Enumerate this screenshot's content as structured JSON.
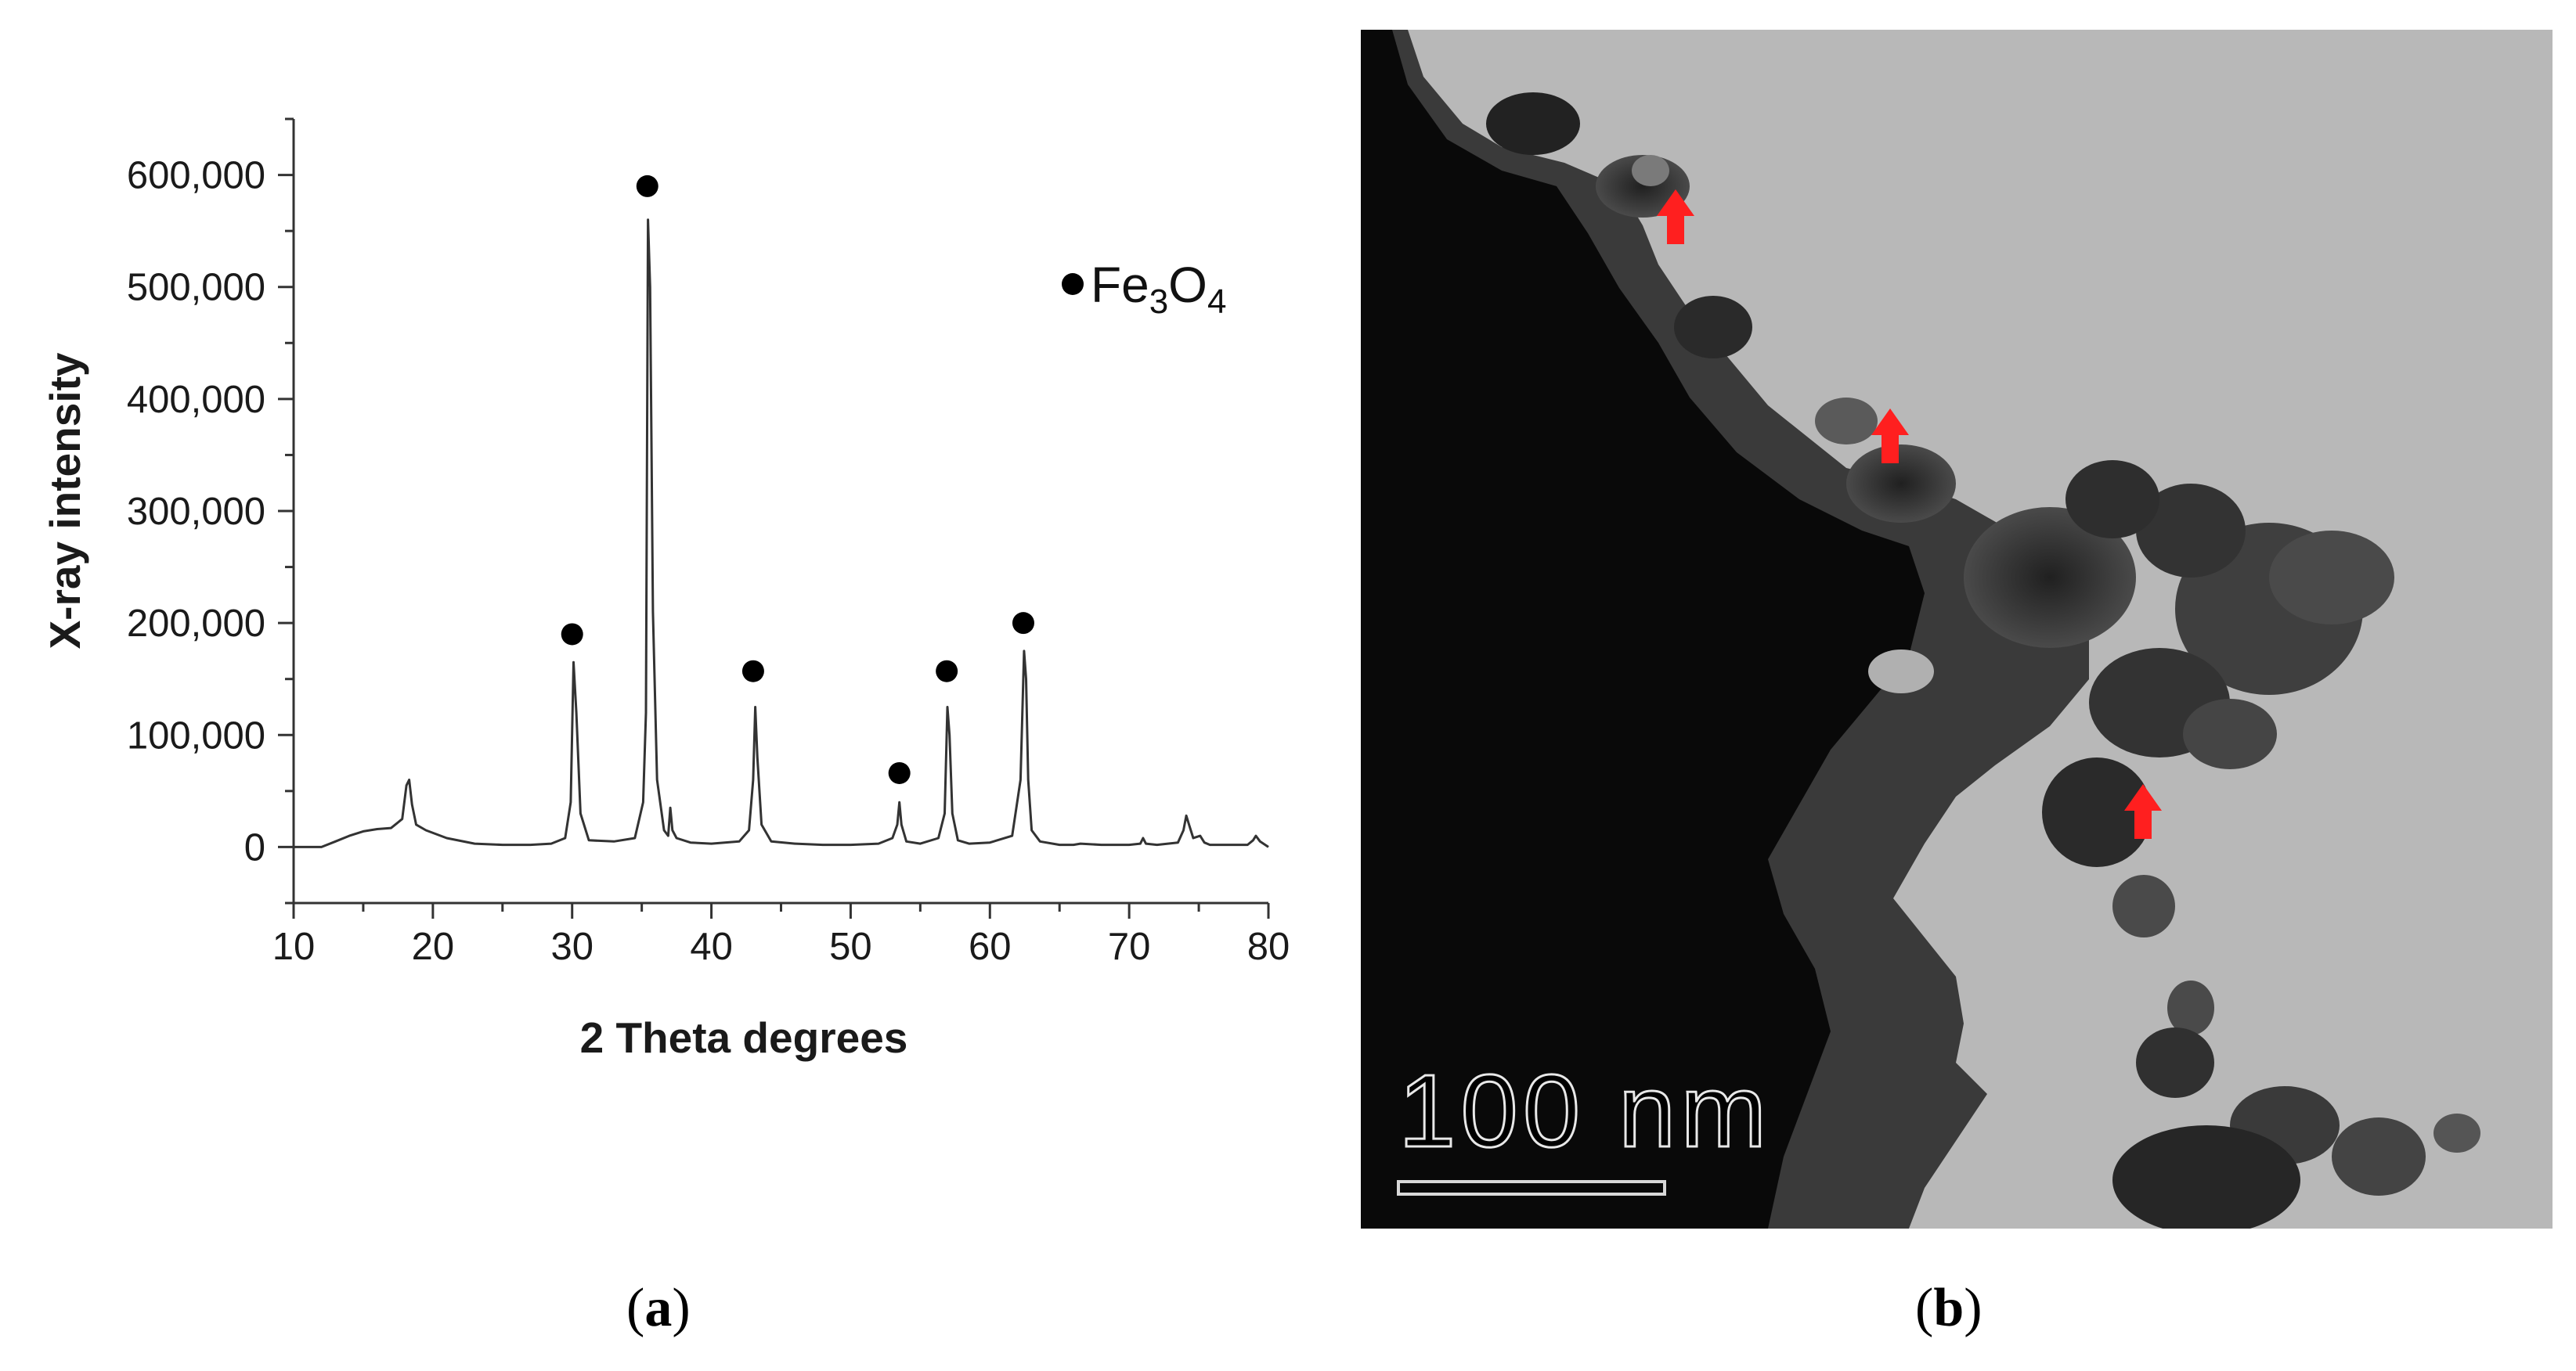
{
  "chart_data": {
    "type": "line",
    "panel_label": "a",
    "xlabel": "2 Theta degrees",
    "ylabel": "X-ray intensity",
    "xlim": [
      10,
      80
    ],
    "ylim": [
      -50000,
      650000
    ],
    "x_ticks": [
      10,
      20,
      30,
      40,
      50,
      60,
      70,
      80
    ],
    "y_ticks": [
      0,
      100000,
      200000,
      300000,
      400000,
      500000,
      600000
    ],
    "y_tick_labels": [
      "0",
      "100,000",
      "200,000",
      "300,000",
      "400,000",
      "500,000",
      "600,000"
    ],
    "grid": false,
    "legend": {
      "marker": "filled-circle",
      "label_main": "Fe",
      "label_sub1": "3",
      "label_mid": "O",
      "label_sub2": "4",
      "placement": "top-right"
    },
    "pattern": {
      "x": [
        10,
        12,
        13,
        14,
        15,
        16,
        17,
        17.8,
        18.1,
        18.3,
        18.5,
        18.8,
        19.5,
        21,
        23,
        25,
        27,
        28.5,
        29.5,
        29.9,
        30.1,
        30.3,
        30.6,
        31.2,
        33,
        34.5,
        35.1,
        35.3,
        35.45,
        35.6,
        35.8,
        36.1,
        36.6,
        36.9,
        37.05,
        37.2,
        37.5,
        38.5,
        40,
        42,
        42.7,
        43.0,
        43.15,
        43.3,
        43.6,
        44.3,
        46,
        48,
        50,
        52,
        53.0,
        53.35,
        53.5,
        53.65,
        54.0,
        55,
        56.3,
        56.75,
        56.95,
        57.1,
        57.3,
        57.7,
        58.5,
        60,
        61.6,
        62.2,
        62.45,
        62.6,
        62.75,
        63.0,
        63.6,
        65,
        66,
        66.5,
        68,
        70,
        70.8,
        71.0,
        71.2,
        72,
        73.5,
        73.9,
        74.1,
        74.3,
        74.6,
        75.1,
        75.4,
        75.8,
        77,
        78.5,
        78.9,
        79.1,
        79.4,
        80
      ],
      "y": [
        0,
        0,
        5000,
        10000,
        14000,
        16000,
        17000,
        25000,
        55000,
        60000,
        38000,
        20000,
        15000,
        8000,
        3000,
        2000,
        2000,
        3000,
        8000,
        40000,
        165000,
        120000,
        30000,
        6000,
        5000,
        8000,
        40000,
        120000,
        560000,
        500000,
        210000,
        60000,
        15000,
        10000,
        35000,
        15000,
        8000,
        4000,
        3000,
        5000,
        15000,
        60000,
        125000,
        80000,
        20000,
        5000,
        3000,
        2000,
        2000,
        3000,
        8000,
        20000,
        40000,
        20000,
        5000,
        3000,
        8000,
        30000,
        125000,
        100000,
        30000,
        6000,
        3000,
        4000,
        10000,
        60000,
        175000,
        150000,
        60000,
        15000,
        5000,
        2000,
        2000,
        3000,
        2000,
        2000,
        3000,
        8000,
        3000,
        2000,
        4000,
        15000,
        28000,
        20000,
        8000,
        10000,
        4000,
        2000,
        2000,
        2000,
        6000,
        10000,
        5000,
        0
      ]
    },
    "peaks_marked": [
      {
        "x": 30.0,
        "y": 190000
      },
      {
        "x": 35.4,
        "y": 590000
      },
      {
        "x": 43.0,
        "y": 157000
      },
      {
        "x": 53.5,
        "y": 66000
      },
      {
        "x": 56.9,
        "y": 157000
      },
      {
        "x": 62.4,
        "y": 200000
      }
    ]
  },
  "tem_image": {
    "panel_label": "b",
    "scale_label": "100 nm",
    "arrow_color": "#ff1f1f",
    "arrow_count": 3
  },
  "colors": {
    "line": "#333333",
    "marker": "#000000",
    "axis": "#333333",
    "tem_background": "#b9b9b9",
    "tem_particle": "#080808"
  }
}
